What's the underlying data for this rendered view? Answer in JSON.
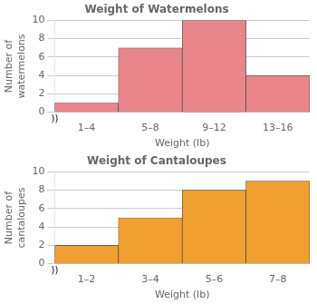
{
  "chart_data": [
    {
      "type": "bar",
      "title": "Weight of Watermelons",
      "xlabel": "Weight (lb)",
      "ylabel": "Number of\nwatermelons",
      "categories": [
        "1–4",
        "5–8",
        "9–12",
        "13–16"
      ],
      "values": [
        1,
        7,
        10,
        4
      ],
      "color": "#e8868c",
      "ylim": [
        0,
        10
      ],
      "yticks": [
        0,
        2,
        4,
        6,
        8,
        10
      ],
      "grid": true,
      "annotation": "))"
    },
    {
      "type": "bar",
      "title": "Weight of Cantaloupes",
      "xlabel": "Weight (lb)",
      "ylabel": "Number of\ncantaloupes",
      "categories": [
        "1–2",
        "3–4",
        "5–6",
        "7–8"
      ],
      "values": [
        2,
        5,
        8,
        9
      ],
      "color": "#f0a030",
      "ylim": [
        0,
        10
      ],
      "yticks": [
        0,
        2,
        4,
        6,
        8,
        10
      ],
      "grid": true,
      "annotation": "))"
    }
  ]
}
